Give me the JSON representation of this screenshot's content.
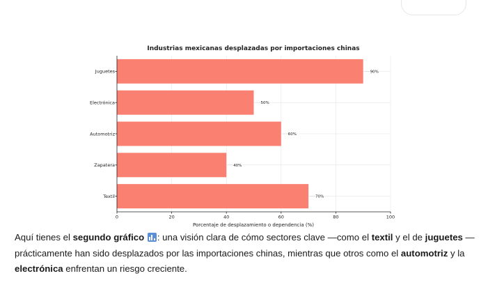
{
  "chart_data": {
    "type": "bar",
    "orientation": "horizontal",
    "title": "Industrias mexicanas desplazadas por importaciones chinas",
    "xlabel": "Porcentaje de desplazamiento o dependencia (%)",
    "ylabel": "",
    "categories": [
      "Juguetes",
      "Electrónica",
      "Automotriz",
      "Zapatera",
      "Textil"
    ],
    "values": [
      90,
      50,
      60,
      40,
      70
    ],
    "value_labels": [
      "90%",
      "50%",
      "60%",
      "40%",
      "70%"
    ],
    "xlim": [
      0,
      100
    ],
    "xticks": [
      "0",
      "20",
      "40",
      "60",
      "80",
      "100"
    ],
    "grid": true,
    "legend": "none",
    "bar_color": "#fa8072"
  },
  "caption": {
    "p1": "Aquí tienes el ",
    "b1": "segundo gráfico",
    "emoji": "bar-chart-icon",
    "p2": ": una visión clara de cómo sectores clave —como el ",
    "b2": "textil",
    "p3": " y el de ",
    "b3": "juguetes",
    "p4": " — prácticamente han sido desplazados por las importaciones chinas, mientras que otros como el ",
    "b4": "automotriz",
    "p5": " y la ",
    "b5": "electrónica",
    "p6": " enfrentan un riesgo creciente."
  }
}
